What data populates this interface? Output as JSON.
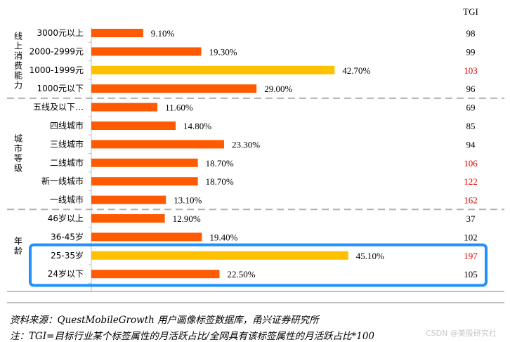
{
  "chart_data": {
    "type": "bar",
    "orientation": "horizontal",
    "tgi_header": "TGI",
    "highlight_color": "#FFC000",
    "bar_color": "#FF5A00",
    "tgi_high_color": "#E30000",
    "box_color": "#1E90FF",
    "groups": [
      {
        "name": "线上消费能力",
        "rows": [
          {
            "label": "3000元以上",
            "value": 9.1,
            "value_text": "9.10%",
            "tgi": 98,
            "highlight": false,
            "tgi_high": false
          },
          {
            "label": "2000-2999元",
            "value": 19.3,
            "value_text": "19.30%",
            "tgi": 99,
            "highlight": false,
            "tgi_high": false
          },
          {
            "label": "1000-1999元",
            "value": 42.7,
            "value_text": "42.70%",
            "tgi": 103,
            "highlight": true,
            "tgi_high": true
          },
          {
            "label": "1000元以下",
            "value": 29.0,
            "value_text": "29.00%",
            "tgi": 96,
            "highlight": false,
            "tgi_high": false
          }
        ]
      },
      {
        "name": "城市等级",
        "rows": [
          {
            "label": "五线及以下…",
            "value": 11.6,
            "value_text": "11.60%",
            "tgi": 69,
            "highlight": false,
            "tgi_high": false
          },
          {
            "label": "四线城市",
            "value": 14.8,
            "value_text": "14.80%",
            "tgi": 85,
            "highlight": false,
            "tgi_high": false
          },
          {
            "label": "三线城市",
            "value": 23.3,
            "value_text": "23.30%",
            "tgi": 94,
            "highlight": false,
            "tgi_high": false
          },
          {
            "label": "二线城市",
            "value": 18.7,
            "value_text": "18.70%",
            "tgi": 106,
            "highlight": false,
            "tgi_high": true
          },
          {
            "label": "新一线城市",
            "value": 18.7,
            "value_text": "18.70%",
            "tgi": 122,
            "highlight": false,
            "tgi_high": true
          },
          {
            "label": "一线城市",
            "value": 13.1,
            "value_text": "13.10%",
            "tgi": 162,
            "highlight": false,
            "tgi_high": true
          }
        ]
      },
      {
        "name": "年龄",
        "rows": [
          {
            "label": "46岁以上",
            "value": 12.9,
            "value_text": "12.90%",
            "tgi": 37,
            "highlight": false,
            "tgi_high": false
          },
          {
            "label": "36-45岁",
            "value": 19.4,
            "value_text": "19.40%",
            "tgi": 102,
            "highlight": false,
            "tgi_high": false
          },
          {
            "label": "25-35岁",
            "value": 45.1,
            "value_text": "45.10%",
            "tgi": 197,
            "highlight": true,
            "tgi_high": true
          },
          {
            "label": "24岁以下",
            "value": 22.5,
            "value_text": "22.50%",
            "tgi": 105,
            "highlight": false,
            "tgi_high": false
          }
        ]
      }
    ]
  },
  "footer": {
    "source": "资料来源：QuestMobileGrowth 用户画像标签数据库，甬兴证券研究所",
    "note": "注：TGI=目标行业某个标签属性的月活跃占比/全网具有该标签属性的月活跃占比*100"
  },
  "watermark": "CSDN @美股研究社"
}
